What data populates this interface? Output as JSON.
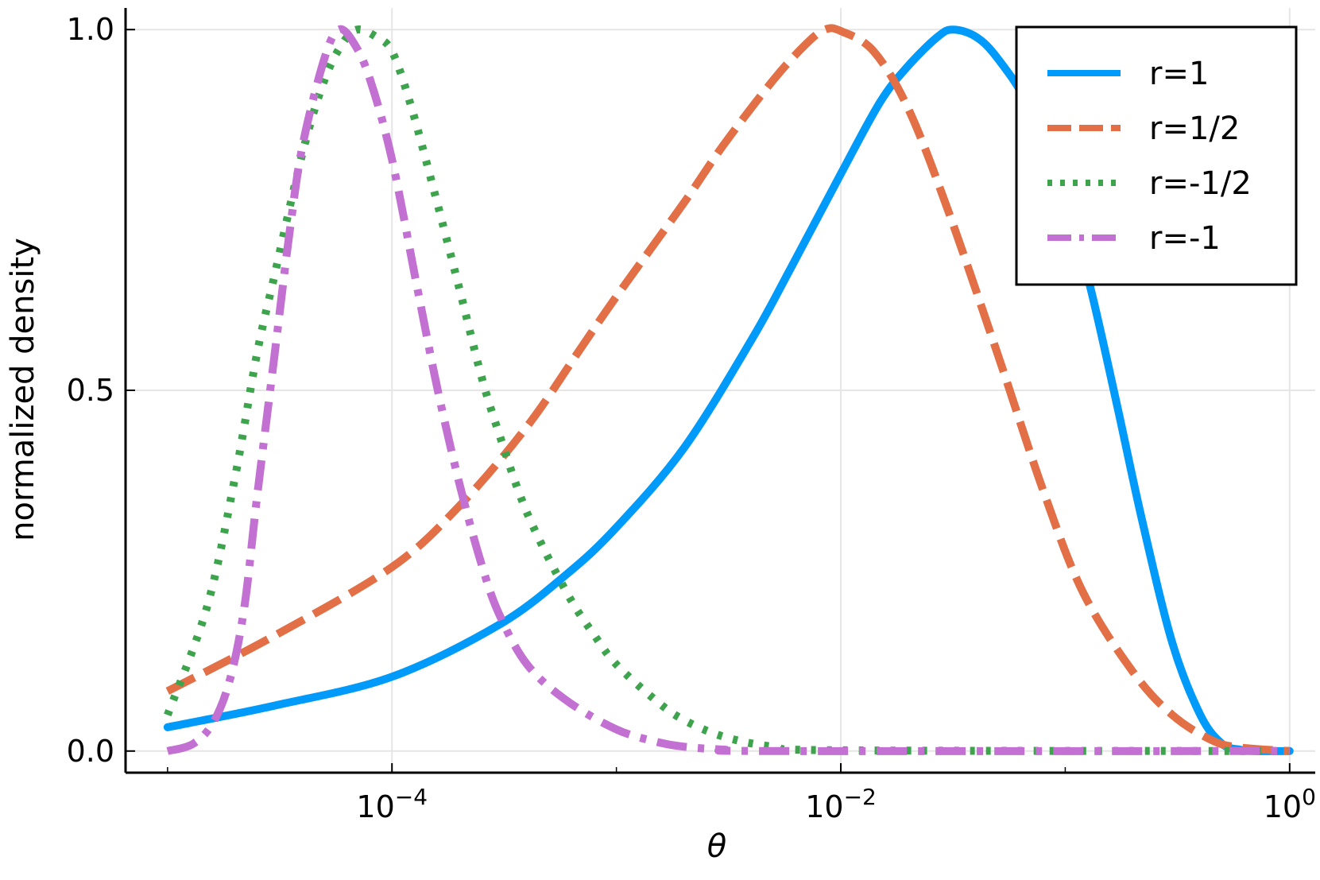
{
  "chart_data": {
    "type": "line",
    "title": "",
    "xlabel": "θ",
    "ylabel": "normalized density",
    "xscale": "log10",
    "xlim": [
      6.5e-06,
      1.3
    ],
    "ylim": [
      -0.03,
      1.03
    ],
    "x_ticks": [
      {
        "value": 0.0001,
        "label_base": "10",
        "label_exp": "−4"
      },
      {
        "value": 0.01,
        "label_base": "10",
        "label_exp": "−2"
      },
      {
        "value": 1,
        "label_base": "10",
        "label_exp": "0"
      }
    ],
    "x_minor_ticks": [
      1e-05,
      0.001,
      0.1
    ],
    "y_ticks": [
      {
        "value": 0.0,
        "label": "0.0"
      },
      {
        "value": 0.5,
        "label": "0.5"
      },
      {
        "value": 1.0,
        "label": "1.0"
      }
    ],
    "grid": true,
    "legend_position": "top-right",
    "series": [
      {
        "name": "r=1",
        "color": "#009AFA",
        "dash": "solid",
        "points": [
          [
            1e-05,
            0.033
          ],
          [
            3e-05,
            0.063
          ],
          [
            0.0001,
            0.103
          ],
          [
            0.0003,
            0.175
          ],
          [
            0.0006,
            0.245
          ],
          [
            0.001,
            0.31
          ],
          [
            0.002,
            0.42
          ],
          [
            0.004,
            0.57
          ],
          [
            0.006,
            0.67
          ],
          [
            0.01,
            0.8
          ],
          [
            0.015,
            0.9
          ],
          [
            0.02,
            0.95
          ],
          [
            0.027,
            0.99
          ],
          [
            0.0316,
            1.0
          ],
          [
            0.04,
            0.99
          ],
          [
            0.05,
            0.96
          ],
          [
            0.07,
            0.89
          ],
          [
            0.1,
            0.77
          ],
          [
            0.13,
            0.64
          ],
          [
            0.17,
            0.48
          ],
          [
            0.22,
            0.32
          ],
          [
            0.3,
            0.15
          ],
          [
            0.4,
            0.05
          ],
          [
            0.5,
            0.01
          ],
          [
            0.6,
            0.002
          ],
          [
            0.7,
            0.0
          ],
          [
            1.0,
            0.0
          ]
        ]
      },
      {
        "name": "r=1/2",
        "color": "#E26F46",
        "dash": "dashed",
        "points": [
          [
            1e-05,
            0.083
          ],
          [
            3e-05,
            0.16
          ],
          [
            0.0001,
            0.255
          ],
          [
            0.0002,
            0.34
          ],
          [
            0.0004,
            0.45
          ],
          [
            0.0007,
            0.56
          ],
          [
            0.001,
            0.63
          ],
          [
            0.002,
            0.76
          ],
          [
            0.003,
            0.84
          ],
          [
            0.005,
            0.93
          ],
          [
            0.007,
            0.98
          ],
          [
            0.0085,
            1.0
          ],
          [
            0.01,
            0.998
          ],
          [
            0.014,
            0.97
          ],
          [
            0.02,
            0.89
          ],
          [
            0.03,
            0.75
          ],
          [
            0.05,
            0.55
          ],
          [
            0.08,
            0.36
          ],
          [
            0.12,
            0.22
          ],
          [
            0.2,
            0.11
          ],
          [
            0.3,
            0.05
          ],
          [
            0.45,
            0.015
          ],
          [
            0.6,
            0.005
          ],
          [
            1.0,
            0.0
          ]
        ]
      },
      {
        "name": "r=-1/2",
        "color": "#3DA44D",
        "dash": "dotted",
        "points": [
          [
            1e-05,
            0.05
          ],
          [
            1.5e-05,
            0.2
          ],
          [
            2e-05,
            0.38
          ],
          [
            2.5e-05,
            0.55
          ],
          [
            3e-05,
            0.66
          ],
          [
            4e-05,
            0.83
          ],
          [
            5e-05,
            0.93
          ],
          [
            6e-05,
            0.98
          ],
          [
            7e-05,
            1.0
          ],
          [
            8.5e-05,
            0.99
          ],
          [
            0.0001,
            0.97
          ],
          [
            0.00012,
            0.9
          ],
          [
            0.00015,
            0.79
          ],
          [
            0.0002,
            0.64
          ],
          [
            0.00025,
            0.52
          ],
          [
            0.0003,
            0.44
          ],
          [
            0.0004,
            0.33
          ],
          [
            0.0006,
            0.22
          ],
          [
            0.0008,
            0.16
          ],
          [
            0.001,
            0.12
          ],
          [
            0.0015,
            0.07
          ],
          [
            0.002,
            0.043
          ],
          [
            0.003,
            0.02
          ],
          [
            0.005,
            0.006
          ],
          [
            0.01,
            0.001
          ],
          [
            1.0,
            0.0
          ]
        ]
      },
      {
        "name": "r=-1",
        "color": "#C271D2",
        "dash": "dashdot",
        "points": [
          [
            1e-05,
            0.0
          ],
          [
            1.3e-05,
            0.01
          ],
          [
            1.6e-05,
            0.04
          ],
          [
            1.9e-05,
            0.1
          ],
          [
            2.2e-05,
            0.2
          ],
          [
            2.5e-05,
            0.35
          ],
          [
            3e-05,
            0.55
          ],
          [
            3.5e-05,
            0.72
          ],
          [
            4e-05,
            0.84
          ],
          [
            5e-05,
            0.96
          ],
          [
            5.8e-05,
            1.0
          ],
          [
            6.8e-05,
            0.98
          ],
          [
            8e-05,
            0.93
          ],
          [
            0.0001,
            0.82
          ],
          [
            0.00013,
            0.64
          ],
          [
            0.00016,
            0.5
          ],
          [
            0.0002,
            0.37
          ],
          [
            0.00025,
            0.26
          ],
          [
            0.0003,
            0.19
          ],
          [
            0.0004,
            0.12
          ],
          [
            0.0006,
            0.07
          ],
          [
            0.001,
            0.03
          ],
          [
            0.0015,
            0.013
          ],
          [
            0.002,
            0.006
          ],
          [
            0.003,
            0.002
          ],
          [
            0.005,
            0.0
          ],
          [
            1.0,
            0.0
          ]
        ]
      }
    ]
  }
}
